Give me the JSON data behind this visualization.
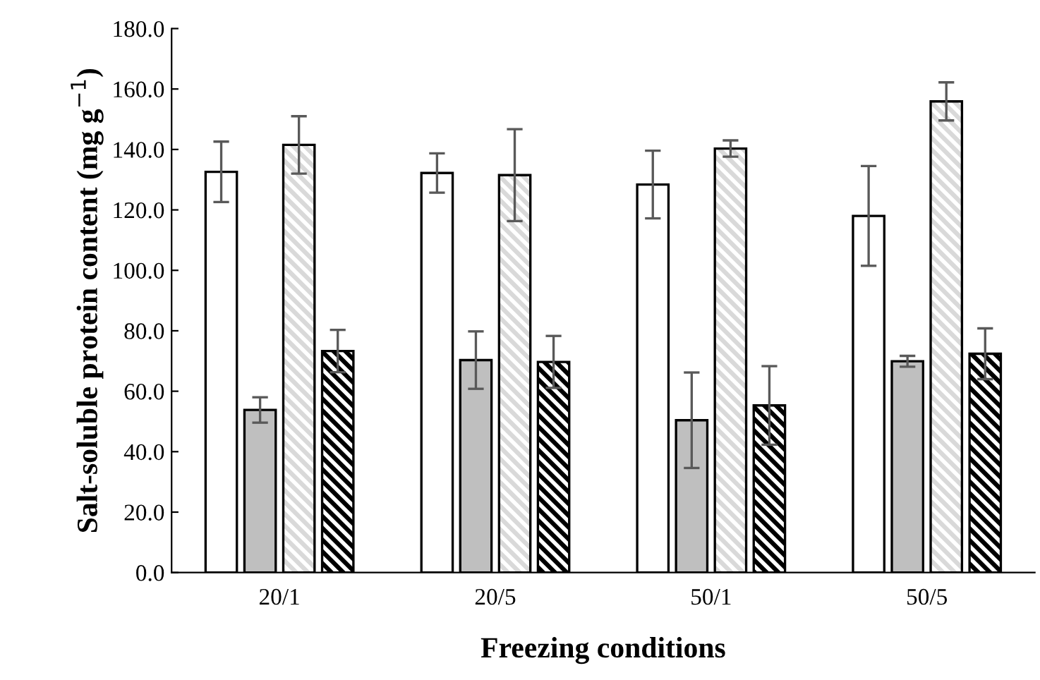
{
  "chart_data": {
    "type": "bar",
    "xlabel": "Freezing conditions",
    "ylabel": "Salt-soluble protein content (mg g$^{−1}$)",
    "categories": [
      "20/1",
      "20/5",
      "50/1",
      "50/5"
    ],
    "series": [
      {
        "color": "#ffffff",
        "values": [
          132.6,
          132.2,
          128.4,
          118.0
        ],
        "errors": [
          10.0,
          6.5,
          11.2,
          16.5
        ]
      },
      {
        "color": "#bfbfbf",
        "values": [
          53.8,
          70.3,
          50.4,
          69.9
        ],
        "errors": [
          4.2,
          9.5,
          15.8,
          1.8
        ]
      },
      {
        "color": "#d9d9d9",
        "values": [
          141.5,
          131.5,
          140.3,
          155.9
        ],
        "errors": [
          9.5,
          15.2,
          2.7,
          6.3
        ]
      },
      {
        "color": "#000000",
        "values": [
          73.3,
          69.7,
          55.3,
          72.4
        ],
        "errors": [
          7.0,
          8.6,
          13.0,
          8.4
        ]
      }
    ],
    "ylim": [
      0,
      180
    ],
    "yticks": [
      {
        "value": 0,
        "label": "0.0"
      },
      {
        "value": 20,
        "label": "20.0"
      },
      {
        "value": 40,
        "label": "40.0"
      },
      {
        "value": 60,
        "label": "60.0"
      },
      {
        "value": 80,
        "label": "80.0"
      },
      {
        "value": 100,
        "label": "100.0"
      },
      {
        "value": 120,
        "label": "120.0"
      },
      {
        "value": 140,
        "label": "140.0"
      },
      {
        "value": 160,
        "label": "160.0"
      },
      {
        "value": 180,
        "label": "180.0"
      }
    ],
    "grid": false,
    "legend": false
  }
}
